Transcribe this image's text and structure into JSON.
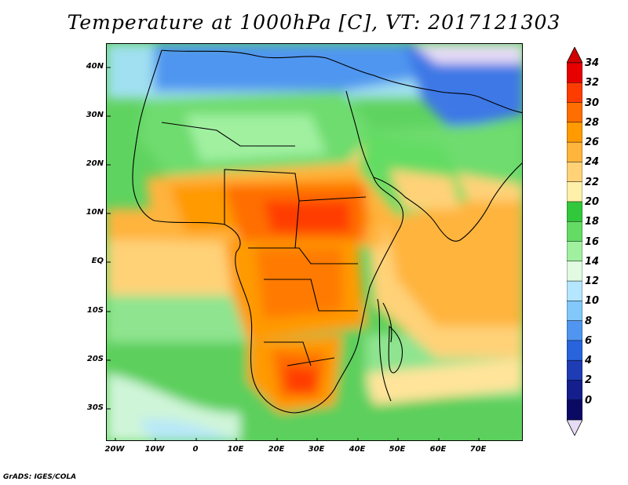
{
  "title": "Temperature at 1000hPa [C], VT: 2017121303",
  "footer": "GrADS: IGES/COLA",
  "latitude_labels": [
    "40N",
    "30N",
    "20N",
    "10N",
    "EQ",
    "10S",
    "20S",
    "30S"
  ],
  "longitude_labels": [
    "20W",
    "10W",
    "0",
    "10E",
    "20E",
    "30E",
    "40E",
    "50E",
    "60E",
    "70E"
  ],
  "colorbar": {
    "labels": [
      "34",
      "32",
      "30",
      "28",
      "26",
      "24",
      "22",
      "20",
      "18",
      "16",
      "14",
      "12",
      "10",
      "8",
      "6",
      "4",
      "2",
      "0"
    ],
    "colors": [
      "#e60000",
      "#ff3c00",
      "#ff6e00",
      "#ff9a00",
      "#ffb43c",
      "#ffd278",
      "#fff0aa",
      "#32c83c",
      "#64dc64",
      "#a0f0a0",
      "#e1fae1",
      "#b4e6ff",
      "#82c8fa",
      "#5096f0",
      "#2864dc",
      "#1e3cb4",
      "#141e8c",
      "#0a0a64"
    ],
    "under_color": "#e6dcf5",
    "over_color": "#d20000"
  }
}
